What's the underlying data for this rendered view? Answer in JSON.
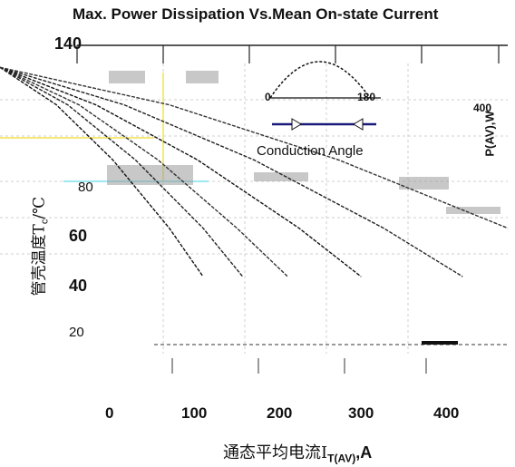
{
  "chart_data": {
    "type": "line",
    "title": "Max. Power Dissipation Vs.Mean On-state Current",
    "xlabel": "通态平均电流I",
    "xlabel_sub": "T(AV)",
    "xlabel_unit": "A",
    "ylabel": "管壳温度T",
    "ylabel_sub": "c",
    "ylabel_unit": "/℃",
    "right_axis_label": "P(AV),W",
    "x_ticks": [
      "0",
      "100",
      "200",
      "300",
      "400"
    ],
    "y_ticks": [
      "140",
      "80",
      "60",
      "40",
      "20"
    ],
    "top_axis_ticks": [
      "0",
      "180",
      "400"
    ],
    "inset_label": "Conduction Angle",
    "xlim": [
      0,
      450
    ],
    "ylim": [
      0,
      140
    ],
    "grid": true,
    "series": [
      {
        "values": [
          [
            0,
            130
          ],
          [
            50,
            113
          ],
          [
            100,
            88
          ],
          [
            150,
            57
          ],
          [
            180,
            35
          ]
        ]
      },
      {
        "values": [
          [
            0,
            130
          ],
          [
            60,
            113
          ],
          [
            120,
            88
          ],
          [
            180,
            57
          ],
          [
            215,
            35
          ]
        ]
      },
      {
        "values": [
          [
            0,
            130
          ],
          [
            70,
            113
          ],
          [
            140,
            88
          ],
          [
            210,
            57
          ],
          [
            255,
            35
          ]
        ]
      },
      {
        "values": [
          [
            0,
            130
          ],
          [
            85,
            113
          ],
          [
            175,
            88
          ],
          [
            265,
            57
          ],
          [
            320,
            35
          ]
        ]
      },
      {
        "values": [
          [
            0,
            130
          ],
          [
            110,
            113
          ],
          [
            225,
            88
          ],
          [
            340,
            57
          ],
          [
            410,
            35
          ]
        ]
      },
      {
        "values": [
          [
            0,
            130
          ],
          [
            150,
            113
          ],
          [
            300,
            88
          ],
          [
            450,
            57
          ]
        ]
      }
    ]
  }
}
